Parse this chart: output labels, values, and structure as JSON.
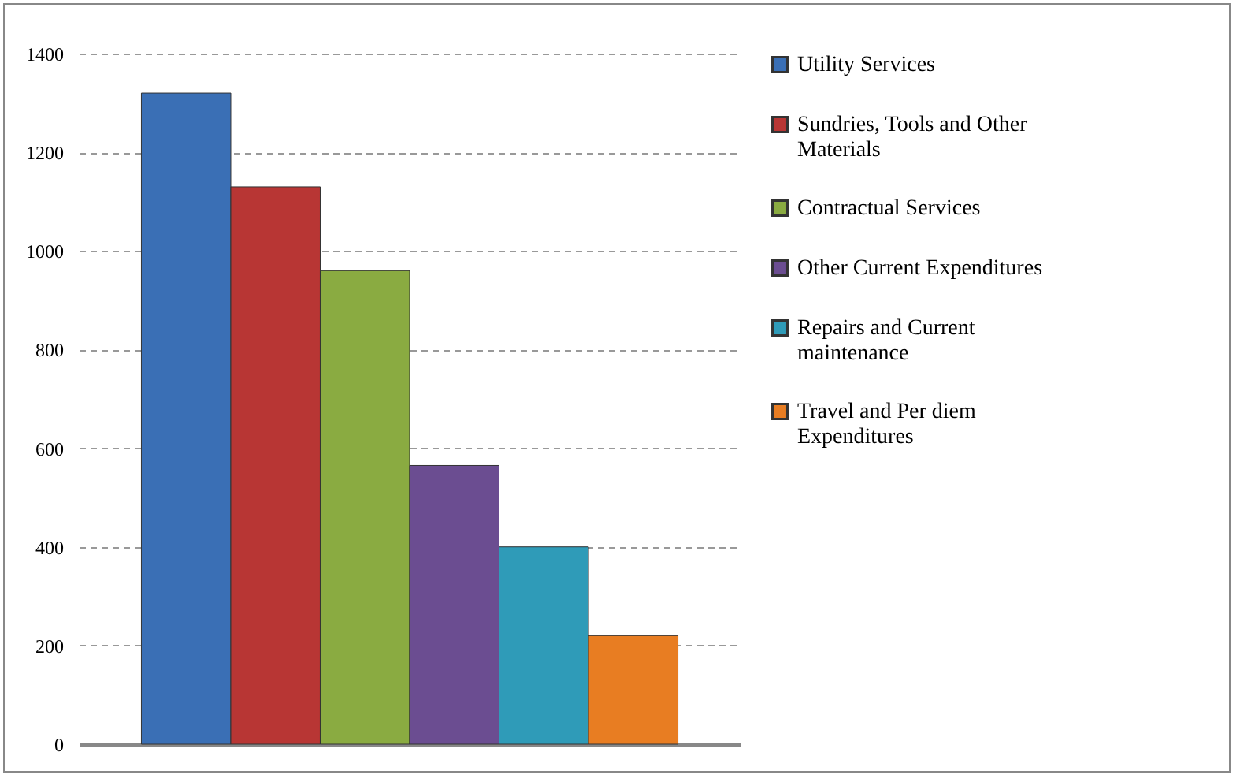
{
  "chart_data": {
    "type": "bar",
    "categories": [
      null
    ],
    "series": [
      {
        "name": "Utility Services",
        "color": "#3a6fb5",
        "values": [
          1320
        ]
      },
      {
        "name": "Sundries, Tools and Other Materials",
        "color": "#b83634",
        "values": [
          1130
        ]
      },
      {
        "name": "Contractual Services",
        "color": "#8aab41",
        "values": [
          960
        ]
      },
      {
        "name": "Other Current Expenditures",
        "color": "#6b4d91",
        "values": [
          565
        ]
      },
      {
        "name": "Repairs and Current maintenance",
        "color": "#2f9bb8",
        "values": [
          400
        ]
      },
      {
        "name": "Travel and Per diem Expenditures",
        "color": "#e87d22",
        "values": [
          220
        ]
      }
    ],
    "ylim": [
      0,
      1400
    ],
    "yticks": [
      0,
      200,
      400,
      600,
      800,
      1000,
      1200,
      1400
    ],
    "grid": "y",
    "legend": "right"
  }
}
